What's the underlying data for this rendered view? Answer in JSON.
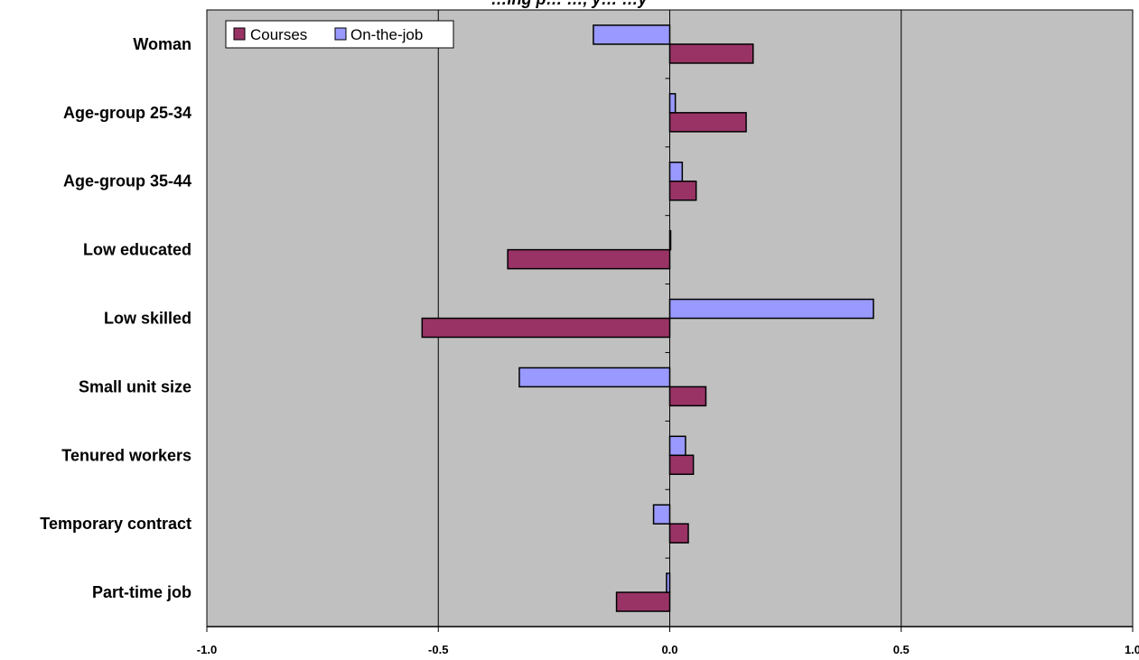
{
  "chart_data": {
    "type": "bar",
    "orientation": "horizontal",
    "title": "…ing p… …, y… …y",
    "categories": [
      "Woman",
      "Age-group 25-34",
      "Age-group 35-44",
      "Low educated",
      "Low skilled",
      "Small unit size",
      "Tenured workers",
      "Temporary contract",
      "Part-time job"
    ],
    "series": [
      {
        "name": "Courses",
        "color": "#993366",
        "values": [
          0.18,
          0.165,
          0.057,
          -0.35,
          -0.535,
          0.078,
          0.051,
          0.04,
          -0.115
        ]
      },
      {
        "name": "On-the-job",
        "color": "#9999ff",
        "values": [
          -0.165,
          0.012,
          0.027,
          0.0,
          0.44,
          -0.325,
          0.034,
          -0.035,
          -0.007
        ]
      }
    ],
    "xlim": [
      -1.0,
      1.0
    ],
    "x_ticks": [
      "-1.0",
      "-0.5",
      "0.0",
      "0.5",
      "1.0"
    ],
    "grid": true,
    "plot_background": "#c0c0c0",
    "legend": "top-left"
  }
}
